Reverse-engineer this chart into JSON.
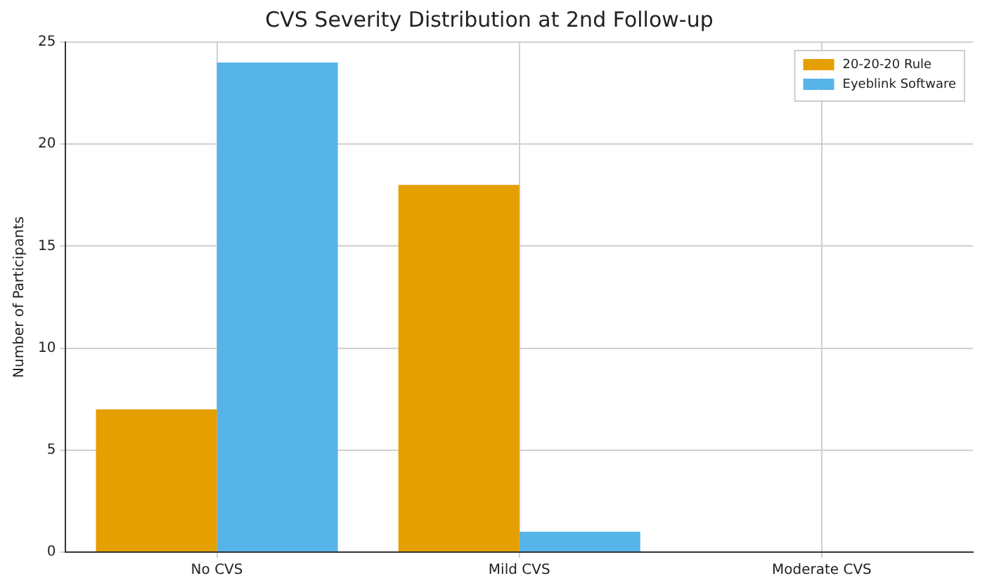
{
  "chart_data": {
    "type": "bar",
    "title": "CVS Severity Distribution at 2nd Follow-up",
    "ylabel": "Number of Participants",
    "categories": [
      "No CVS",
      "Mild CVS",
      "Moderate CVS"
    ],
    "series": [
      {
        "name": "20-20-20 Rule",
        "color": "#e69f00",
        "values": [
          7,
          18,
          0
        ]
      },
      {
        "name": "Eyeblink Software",
        "color": "#56b4e9",
        "values": [
          24,
          1,
          0
        ]
      }
    ],
    "ylim": [
      0,
      25
    ],
    "yticks": [
      0,
      5,
      10,
      15,
      20,
      25
    ],
    "grid": true,
    "legend": "top right"
  }
}
